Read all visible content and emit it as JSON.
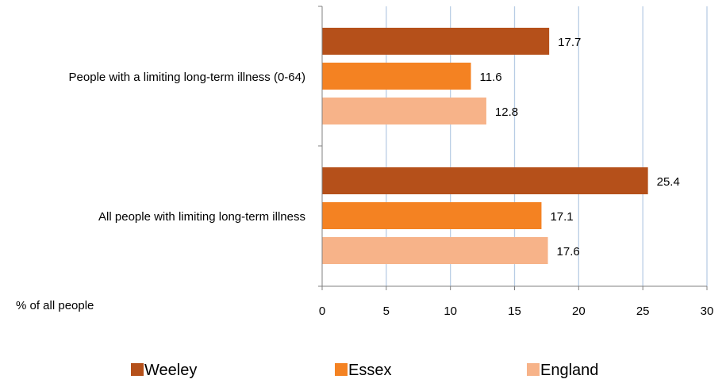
{
  "chart_data": {
    "type": "bar",
    "orientation": "horizontal",
    "categories": [
      "People with a limiting long-term illness (0-64)",
      "All people with limiting long-term illness"
    ],
    "series": [
      {
        "name": "Weeley",
        "values": [
          17.7,
          25.4
        ],
        "color": "#b5501a"
      },
      {
        "name": "Essex",
        "values": [
          11.6,
          17.1
        ],
        "color": "#f48222"
      },
      {
        "name": "England",
        "values": [
          12.8,
          17.6
        ],
        "color": "#f7b389"
      }
    ],
    "axis_title": "% of all people",
    "xlim": [
      0,
      30
    ],
    "ticks": [
      0,
      5,
      10,
      15,
      20,
      25,
      30
    ],
    "grid": true,
    "legend_position": "bottom",
    "gridline_color": "#b9cde5"
  }
}
